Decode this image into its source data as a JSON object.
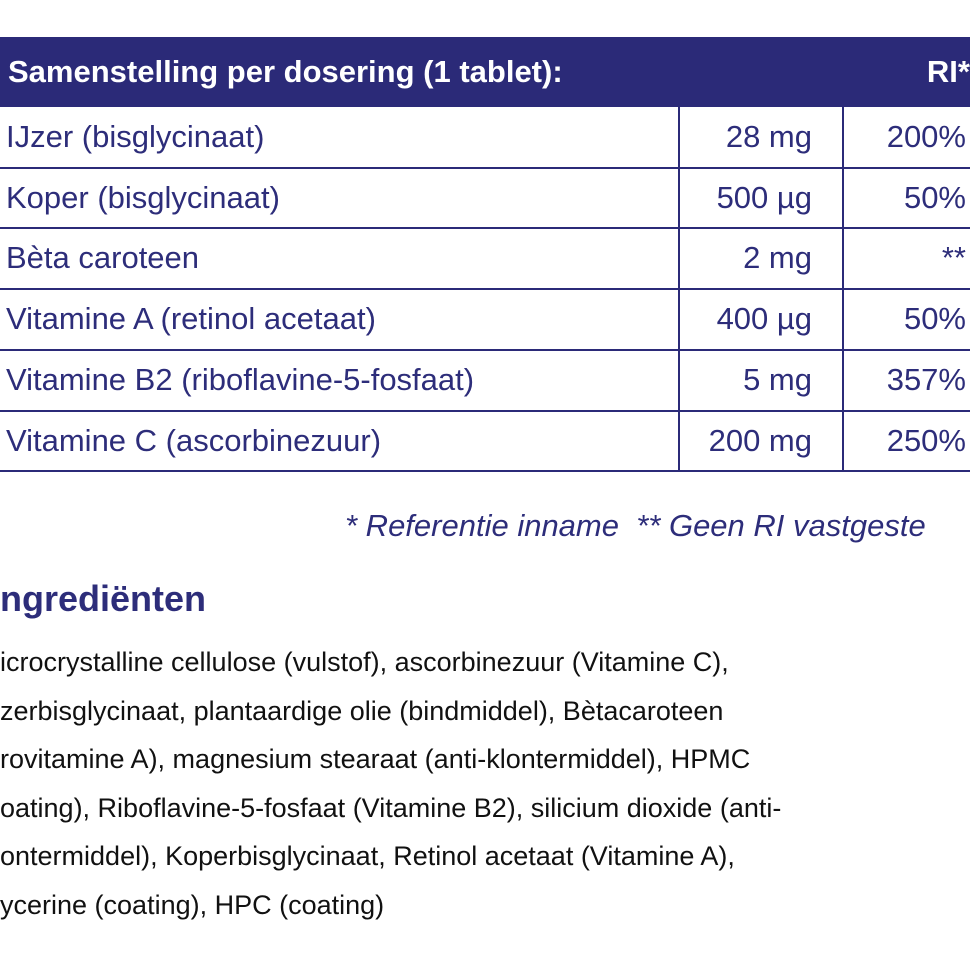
{
  "table": {
    "header": [
      "Samenstelling per dosering (1 tablet):",
      "RI*"
    ],
    "rows": [
      [
        "IJzer (bisglycinaat)",
        "28 mg",
        "200%"
      ],
      [
        "Koper (bisglycinaat)",
        "500 µg",
        "50%"
      ],
      [
        "Bèta caroteen",
        "2 mg",
        "**"
      ],
      [
        "Vitamine A (retinol acetaat)",
        "400 µg",
        "50%"
      ],
      [
        "Vitamine B2 (riboflavine-5-fosfaat)",
        "5 mg",
        "357%"
      ],
      [
        "Vitamine C (ascorbinezuur)",
        "200 mg",
        "250%"
      ]
    ]
  },
  "footnote": "* Referentie inname  ** Geen RI vastgeste",
  "section_title": "ngrediënten",
  "ingredients": [
    "icrocrystalline cellulose (vulstof), ascorbinezuur (Vitamine C),",
    "zerbisglycinaat, plantaardige olie (bindmiddel), Bètacaroteen",
    "rovitamine A), magnesium stearaat (anti-klontermiddel), HPMC",
    "oating), Riboflavine-5-fosfaat (Vitamine B2), silicium dioxide (anti-",
    "ontermiddel), Koperbisglycinaat, Retinol acetaat (Vitamine A),",
    "ycerine (coating), HPC (coating)"
  ]
}
